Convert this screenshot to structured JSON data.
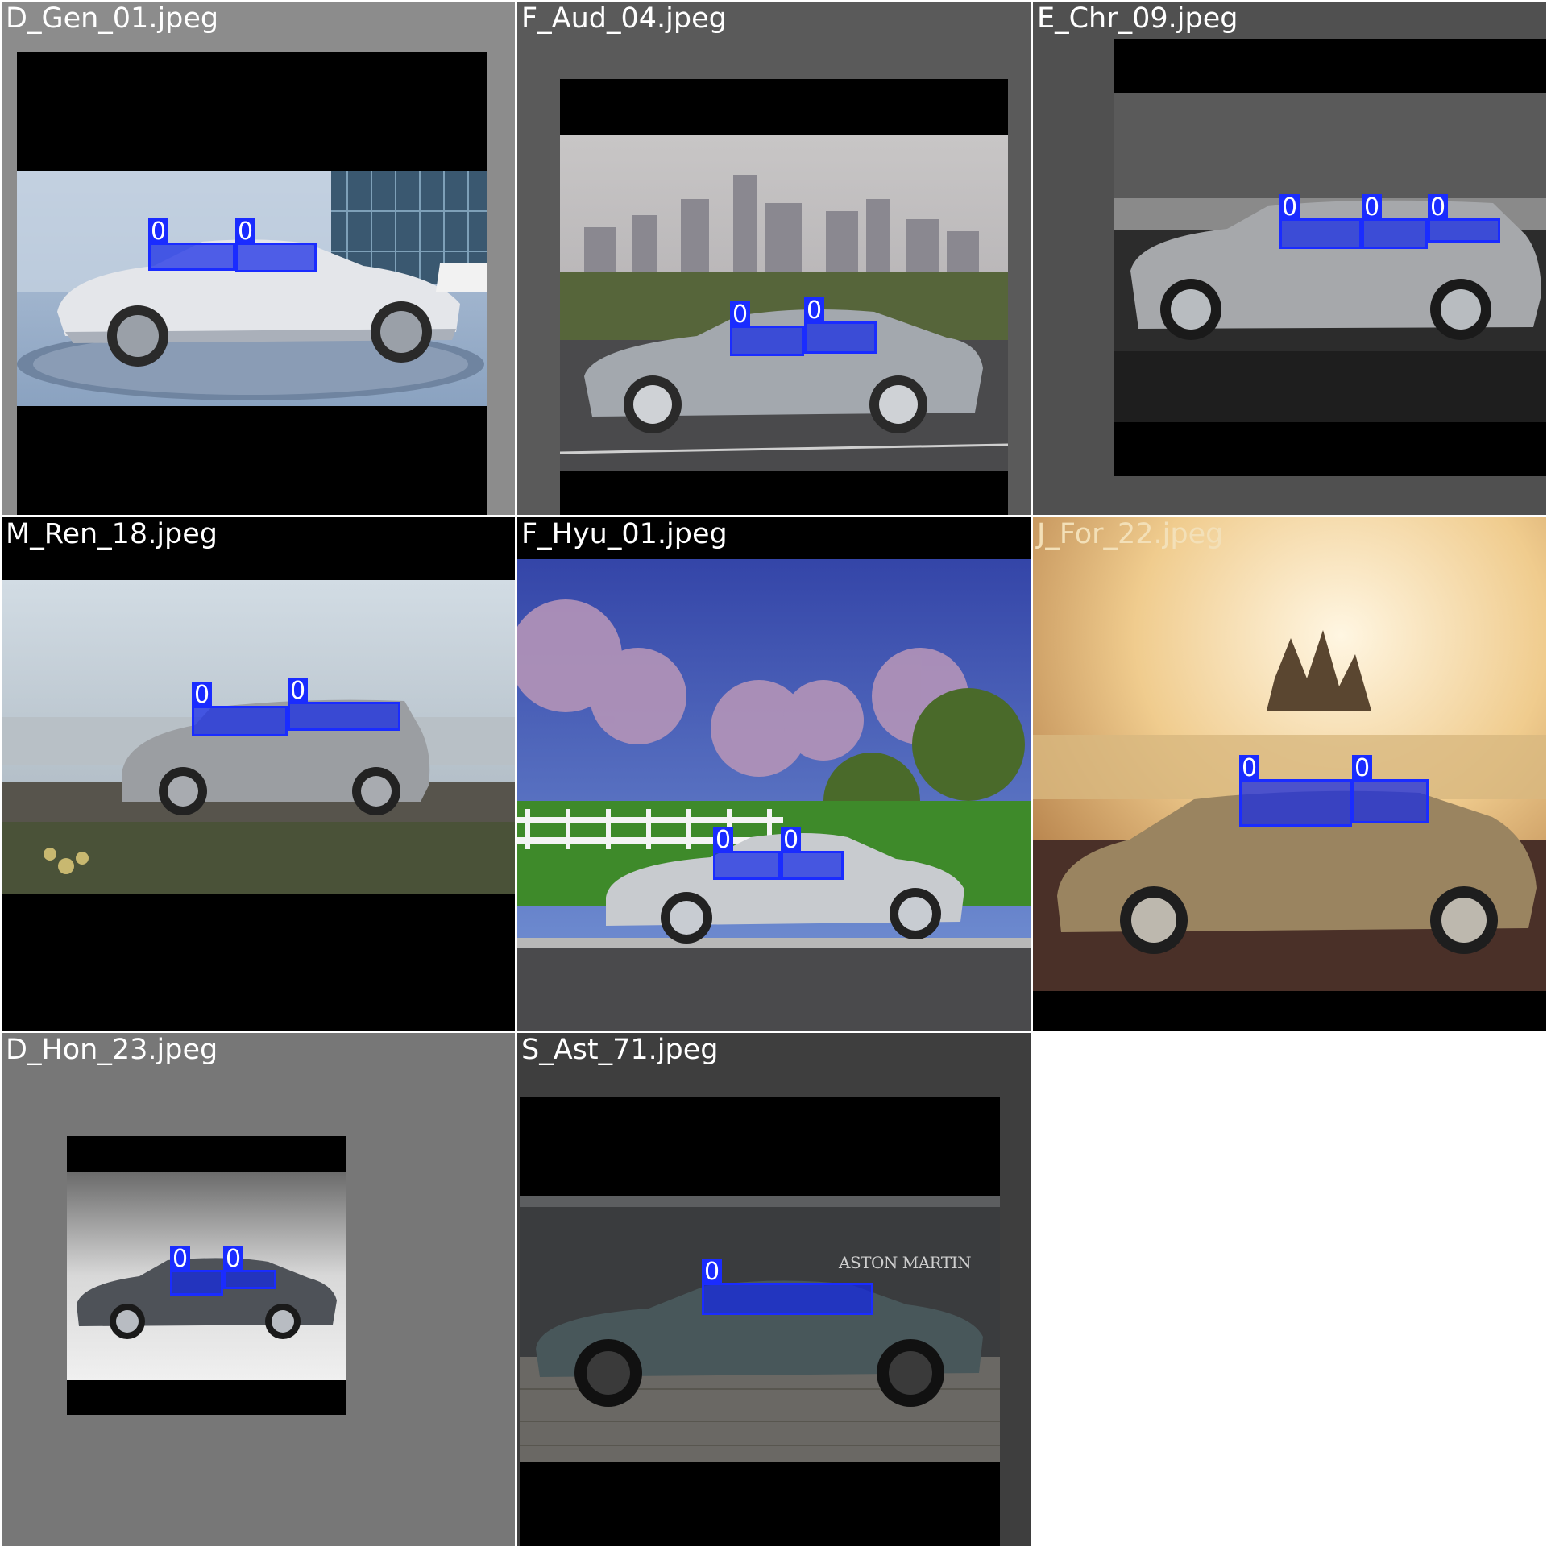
{
  "class_label": "0",
  "tiles": [
    {
      "filename": "D_Gen_01.jpeg",
      "title_color": "#ffffff",
      "bg": "#8c8c8c"
    },
    {
      "filename": "F_Aud_04.jpeg",
      "title_color": "#ffffff",
      "bg": "#5a5a5a"
    },
    {
      "filename": "E_Chr_09.jpeg",
      "title_color": "#ffffff",
      "bg": "#505050"
    },
    {
      "filename": "M_Ren_18.jpeg",
      "title_color": "#ffffff",
      "bg": "#000000"
    },
    {
      "filename": "F_Hyu_01.jpeg",
      "title_color": "#ffffff",
      "bg": "#000000"
    },
    {
      "filename": "J_For_22.jpeg",
      "title_color": "#f3e0b8",
      "bg": "#e8c890"
    },
    {
      "filename": "D_Hon_23.jpeg",
      "title_color": "#ffffff",
      "bg": "#777777"
    },
    {
      "filename": "S_Ast_71.jpeg",
      "title_color": "#ffffff",
      "bg": "#3e3e3e"
    }
  ],
  "brand_sign": "ASTON MARTIN"
}
